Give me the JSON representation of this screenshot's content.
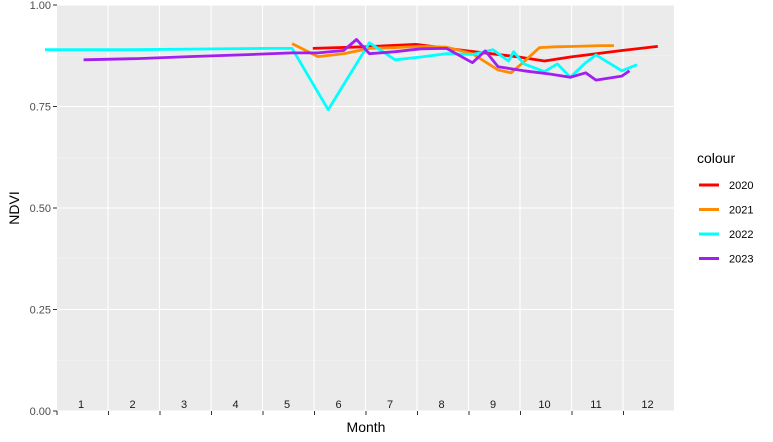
{
  "chart_data": {
    "type": "line",
    "xlabel": "Month",
    "ylabel": "NDVI",
    "ylim": [
      0,
      1
    ],
    "y_ticks": [
      "0.00",
      "0.25",
      "0.50",
      "0.75",
      "1.00"
    ],
    "month_labels": [
      "1",
      "2",
      "3",
      "4",
      "5",
      "6",
      "7",
      "8",
      "9",
      "10",
      "11",
      "12"
    ],
    "grid": true,
    "legend": {
      "title": "colour",
      "position": "right"
    },
    "series": [
      {
        "name": "2020",
        "color": "#ff0000",
        "points": [
          [
            5.5,
            0.893
          ],
          [
            6.5,
            0.897
          ],
          [
            7.5,
            0.903
          ],
          [
            8.5,
            0.887
          ],
          [
            9.5,
            0.872
          ],
          [
            10,
            0.862
          ],
          [
            10.5,
            0.872
          ],
          [
            11.5,
            0.888
          ],
          [
            12.2,
            0.898
          ]
        ]
      },
      {
        "name": "2021",
        "color": "#ff8c00",
        "points": [
          [
            5.1,
            0.905
          ],
          [
            5.6,
            0.873
          ],
          [
            6.1,
            0.88
          ],
          [
            6.6,
            0.893
          ],
          [
            7.1,
            0.895
          ],
          [
            7.6,
            0.898
          ],
          [
            8.1,
            0.896
          ],
          [
            8.6,
            0.88
          ],
          [
            9.1,
            0.84
          ],
          [
            9.35,
            0.833
          ],
          [
            9.6,
            0.86
          ],
          [
            9.9,
            0.895
          ],
          [
            10.2,
            0.897
          ],
          [
            10.6,
            0.898
          ],
          [
            11.1,
            0.9
          ],
          [
            11.35,
            0.9
          ]
        ]
      },
      {
        "name": "2022",
        "color": "#00ffff",
        "points": [
          [
            0.3,
            0.89
          ],
          [
            2,
            0.89
          ],
          [
            4.6,
            0.893
          ],
          [
            5.1,
            0.893
          ],
          [
            5.8,
            0.742
          ],
          [
            6.6,
            0.907
          ],
          [
            7.1,
            0.865
          ],
          [
            7.6,
            0.872
          ],
          [
            8.1,
            0.88
          ],
          [
            8.6,
            0.878
          ],
          [
            9.0,
            0.89
          ],
          [
            9.3,
            0.862
          ],
          [
            9.4,
            0.885
          ],
          [
            9.6,
            0.855
          ],
          [
            10.0,
            0.836
          ],
          [
            10.25,
            0.855
          ],
          [
            10.5,
            0.822
          ],
          [
            10.8,
            0.858
          ],
          [
            11.0,
            0.877
          ],
          [
            11.5,
            0.838
          ],
          [
            11.8,
            0.853
          ]
        ]
      },
      {
        "name": "2023",
        "color": "#a020f0",
        "points": [
          [
            1.05,
            0.865
          ],
          [
            2.1,
            0.868
          ],
          [
            3.1,
            0.873
          ],
          [
            4.1,
            0.877
          ],
          [
            5.1,
            0.882
          ],
          [
            5.6,
            0.882
          ],
          [
            6.1,
            0.888
          ],
          [
            6.35,
            0.915
          ],
          [
            6.6,
            0.88
          ],
          [
            7.1,
            0.885
          ],
          [
            7.6,
            0.892
          ],
          [
            8.1,
            0.893
          ],
          [
            8.6,
            0.858
          ],
          [
            8.85,
            0.887
          ],
          [
            9.1,
            0.848
          ],
          [
            9.6,
            0.838
          ],
          [
            10.1,
            0.83
          ],
          [
            10.5,
            0.822
          ],
          [
            10.8,
            0.833
          ],
          [
            11.0,
            0.815
          ],
          [
            11.5,
            0.825
          ],
          [
            11.65,
            0.838
          ]
        ]
      }
    ]
  }
}
